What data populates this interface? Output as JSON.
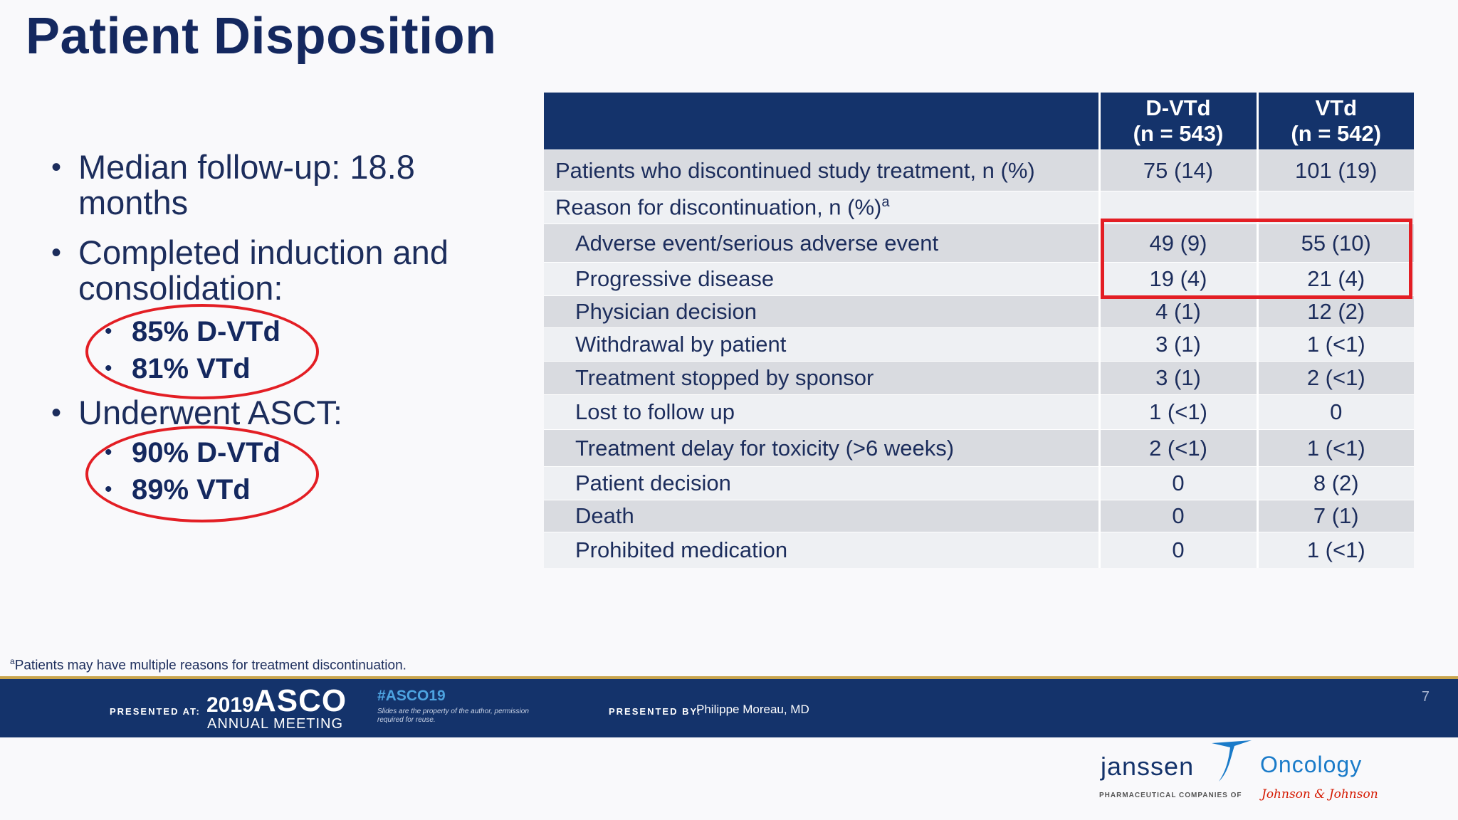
{
  "title": "Patient Disposition",
  "bullets": {
    "follow_up": "Median follow-up: 18.8 months",
    "completed": "Completed induction and consolidation:",
    "completed_items": [
      "85% D-VTd",
      "81% VTd"
    ],
    "asct": "Underwent ASCT:",
    "asct_items": [
      "90% D-VTd",
      "89% VTd"
    ],
    "bullet_glyph": "•"
  },
  "table": {
    "headers": {
      "col1": {
        "line1": "D-VTd",
        "line2": "(n = 543)"
      },
      "col2": {
        "line1": "VTd",
        "line2": "(n = 542)"
      }
    },
    "rows": [
      {
        "label": "Patients who discontinued study treatment, n (%)",
        "dvtd": "75 (14)",
        "vtd": "101 (19)"
      },
      {
        "label": "Reason for discontinuation, n (%)",
        "sup": "a",
        "dvtd": "",
        "vtd": ""
      },
      {
        "label": "Adverse event/serious adverse event",
        "dvtd": "49 (9)",
        "vtd": "55 (10)"
      },
      {
        "label": "Progressive disease",
        "dvtd": "19 (4)",
        "vtd": "21 (4)"
      },
      {
        "label": "Physician decision",
        "dvtd": "4 (1)",
        "vtd": "12 (2)"
      },
      {
        "label": "Withdrawal by patient",
        "dvtd": "3 (1)",
        "vtd": "1 (<1)"
      },
      {
        "label": "Treatment stopped by sponsor",
        "dvtd": "3 (1)",
        "vtd": "2 (<1)"
      },
      {
        "label": "Lost to follow up",
        "dvtd": "1 (<1)",
        "vtd": "0"
      },
      {
        "label": "Treatment delay for toxicity (>6 weeks)",
        "dvtd": "2 (<1)",
        "vtd": "1 (<1)"
      },
      {
        "label": "Patient decision",
        "dvtd": "0",
        "vtd": "8 (2)"
      },
      {
        "label": "Death",
        "dvtd": "0",
        "vtd": "7 (1)"
      },
      {
        "label": "Prohibited medication",
        "dvtd": "0",
        "vtd": "1 (<1)"
      }
    ]
  },
  "footnote": {
    "sup": "a",
    "text": "Patients may have multiple reasons for treatment discontinuation."
  },
  "footer": {
    "presented_at": "PRESENTED AT:",
    "asco_year": "2019",
    "asco_name": "ASCO",
    "annual_meeting": "ANNUAL MEETING",
    "hashtag": "#ASCO19",
    "disclaimer": "Slides are the property of the author, permission required for reuse.",
    "presented_by": "PRESENTED BY:",
    "presenter": "Philippe Moreau, MD",
    "page_number": "7"
  },
  "logo": {
    "janssen": "janssen",
    "oncology": "Oncology",
    "pharma": "PHARMACEUTICAL COMPANIES OF",
    "jnj": "Johnson & Johnson"
  },
  "colors": {
    "navy": "#14336b",
    "title_navy": "#14285f",
    "highlight_red": "#e31e24",
    "row_shade": "#d9dbe0",
    "row_light": "#eef0f3",
    "gold_rule": "#c9a54c",
    "oncology_blue": "#1a7bc9"
  }
}
